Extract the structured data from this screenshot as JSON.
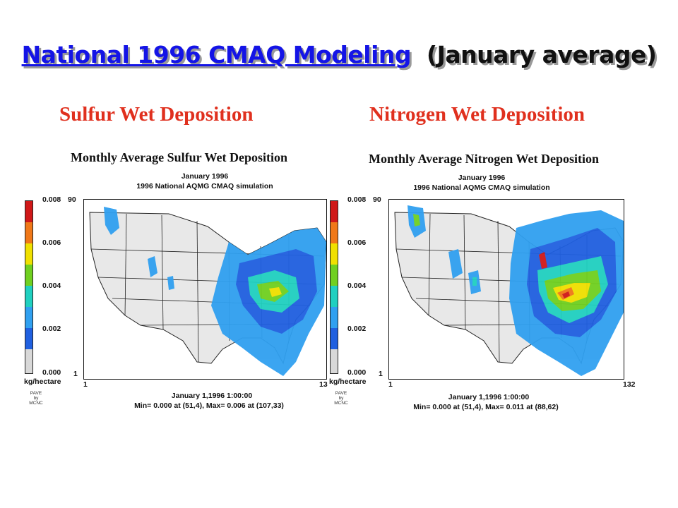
{
  "slide": {
    "title_main": "National 1996 CMAQ Modeling",
    "title_sub": "(January average)"
  },
  "panels": [
    {
      "heading": "Sulfur Wet Deposition",
      "plot_title": "Monthly Average Sulfur Wet Deposition",
      "period": "January 1996",
      "simulation": "1996 National AQMG CMAQ simulation",
      "scale_ticks": [
        "0.008",
        "0.006",
        "0.004",
        "0.002",
        "0.000"
      ],
      "units": "kg/hectare",
      "y_max_label": "90",
      "y_min_label": "1",
      "x_min_label": "1",
      "x_max_label": "13",
      "timestamp": "January 1,1996 1:00:00",
      "minmax": "Min=   0.000 at (51,4), Max=   0.006 at (107,33)",
      "credit_lines": [
        "PAVE",
        "by",
        "MCNC"
      ]
    },
    {
      "heading": "Nitrogen Wet Deposition",
      "plot_title": "Monthly Average Nitrogen Wet Deposition",
      "period": "January 1996",
      "simulation": "1996 National AQMG CMAQ simulation",
      "scale_ticks": [
        "0.008",
        "0.006",
        "0.004",
        "0.002",
        "0.000"
      ],
      "units": "kg/hectare",
      "y_max_label": "90",
      "y_min_label": "1",
      "x_min_label": "1",
      "x_max_label": "132",
      "timestamp": "January 1,1996 1:00:00",
      "minmax": "Min=   0.000 at (51,4), Max=   0.011 at (88,62)",
      "credit_lines": [
        "PAVE",
        "by",
        "MCNC"
      ]
    }
  ],
  "color_scale": [
    "#d01818",
    "#f07818",
    "#f0e000",
    "#70d020",
    "#20d0c0",
    "#30a0f0",
    "#2060e0",
    "#d8d8d8"
  ]
}
